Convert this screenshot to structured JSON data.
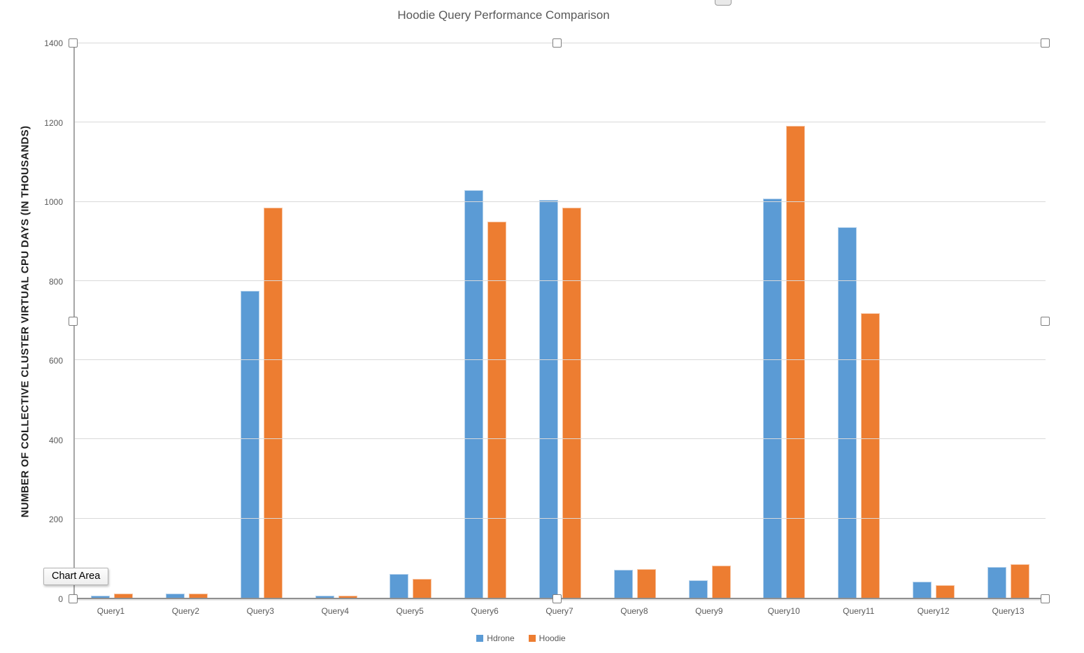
{
  "app": {
    "tooltip": "Chart Area"
  },
  "colors": {
    "series_hdrone": "#5B9BD5",
    "series_hoodie": "#ED7D31",
    "gridline": "#D9D9D9",
    "axis_line": "#8F8F8F",
    "text_muted": "#595959"
  },
  "chart_data": {
    "type": "bar",
    "title": "Hoodie Query Performance Comparison",
    "xlabel": "",
    "ylabel": "NUMBER OF COLLECTIVE CLUSTER VIRTUAL CPU DAYS (IN THOUSANDS)",
    "categories": [
      "Query1",
      "Query2",
      "Query3",
      "Query4",
      "Query5",
      "Query6",
      "Query7",
      "Query8",
      "Query9",
      "Query10",
      "Query11",
      "Query12",
      "Query13"
    ],
    "series": [
      {
        "name": "Hdrone",
        "color": "#5B9BD5",
        "values": [
          5,
          10,
          775,
          5,
          60,
          1030,
          1005,
          70,
          45,
          1008,
          935,
          40,
          78
        ]
      },
      {
        "name": "Hoodie",
        "color": "#ED7D31",
        "values": [
          10,
          10,
          985,
          5,
          48,
          950,
          985,
          72,
          82,
          1192,
          718,
          32,
          85
        ]
      }
    ],
    "ylim": [
      0,
      1400
    ],
    "yticks": [
      0,
      200,
      400,
      600,
      800,
      1000,
      1200,
      1400
    ],
    "grid": "horizontal",
    "legend_position": "bottom"
  }
}
